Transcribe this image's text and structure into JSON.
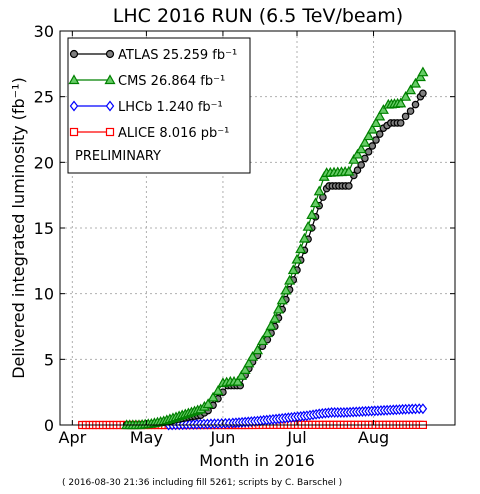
{
  "chart_data": {
    "type": "line",
    "title": "LHC 2016 RUN (6.5 TeV/beam)",
    "xlabel": "Month in 2016",
    "ylabel": "Delivered integrated luminosity (fb⁻¹)",
    "footnote": "( 2016-08-30 21:36 including fill 5261; scripts by C. Barschel )",
    "annotation": "PRELIMINARY",
    "xlim": [
      "2016-03-27",
      "2016-09-03"
    ],
    "ylim": [
      0,
      30
    ],
    "x_ticks": [
      {
        "label": "Apr",
        "date": "2016-04-01"
      },
      {
        "label": "May",
        "date": "2016-05-01"
      },
      {
        "label": "Jun",
        "date": "2016-06-01"
      },
      {
        "label": "Jul",
        "date": "2016-07-01"
      },
      {
        "label": "Aug",
        "date": "2016-08-01"
      }
    ],
    "y_ticks": [
      0,
      5,
      10,
      15,
      20,
      25,
      30
    ],
    "grid": true,
    "legend_position": "top-left",
    "series": [
      {
        "name": "ATLAS",
        "legend_label": "ATLAS 25.259 fb⁻¹",
        "color": "#000000",
        "marker_fill": "#808080",
        "marker": "circle",
        "points": [
          [
            "2016-04-23",
            0
          ],
          [
            "2016-04-28",
            0
          ],
          [
            "2016-05-03",
            0.05
          ],
          [
            "2016-05-08",
            0.2
          ],
          [
            "2016-05-13",
            0.4
          ],
          [
            "2016-05-18",
            0.6
          ],
          [
            "2016-05-23",
            0.75
          ],
          [
            "2016-05-26",
            1.1
          ],
          [
            "2016-05-28",
            1.5
          ],
          [
            "2016-05-30",
            2.0
          ],
          [
            "2016-06-01",
            2.5
          ],
          [
            "2016-06-03",
            3.0
          ],
          [
            "2016-06-08",
            3.0
          ],
          [
            "2016-06-10",
            3.8
          ],
          [
            "2016-06-13",
            4.8
          ],
          [
            "2016-06-15",
            5.3
          ],
          [
            "2016-06-17",
            6.0
          ],
          [
            "2016-06-19",
            6.5
          ],
          [
            "2016-06-22",
            7.5
          ],
          [
            "2016-06-25",
            8.8
          ],
          [
            "2016-06-28",
            10.3
          ],
          [
            "2016-07-01",
            11.8
          ],
          [
            "2016-07-04",
            13.3
          ],
          [
            "2016-07-07",
            15.0
          ],
          [
            "2016-07-10",
            16.7
          ],
          [
            "2016-07-13",
            18.0
          ],
          [
            "2016-07-14",
            18.2
          ],
          [
            "2016-07-22",
            18.2
          ],
          [
            "2016-07-24",
            19.0
          ],
          [
            "2016-07-27",
            19.8
          ],
          [
            "2016-07-30",
            20.8
          ],
          [
            "2016-08-02",
            21.7
          ],
          [
            "2016-08-05",
            22.6
          ],
          [
            "2016-08-08",
            23.0
          ],
          [
            "2016-08-12",
            23.0
          ],
          [
            "2016-08-14",
            23.5
          ],
          [
            "2016-08-16",
            23.9
          ],
          [
            "2016-08-18",
            24.4
          ],
          [
            "2016-08-20",
            25.0
          ],
          [
            "2016-08-21",
            25.259
          ]
        ]
      },
      {
        "name": "CMS",
        "legend_label": "CMS 26.864 fb⁻¹",
        "color": "#008000",
        "marker_fill": "#66cc66",
        "marker": "triangle",
        "points": [
          [
            "2016-04-23",
            0
          ],
          [
            "2016-04-28",
            0
          ],
          [
            "2016-05-03",
            0.1
          ],
          [
            "2016-05-08",
            0.3
          ],
          [
            "2016-05-13",
            0.6
          ],
          [
            "2016-05-18",
            0.9
          ],
          [
            "2016-05-23",
            1.2
          ],
          [
            "2016-05-26",
            1.6
          ],
          [
            "2016-05-28",
            2.1
          ],
          [
            "2016-05-30",
            2.6
          ],
          [
            "2016-06-01",
            3.2
          ],
          [
            "2016-06-04",
            3.3
          ],
          [
            "2016-06-07",
            3.3
          ],
          [
            "2016-06-10",
            4.2
          ],
          [
            "2016-06-13",
            5.2
          ],
          [
            "2016-06-15",
            5.7
          ],
          [
            "2016-06-17",
            6.4
          ],
          [
            "2016-06-19",
            7.0
          ],
          [
            "2016-06-22",
            8.1
          ],
          [
            "2016-06-25",
            9.5
          ],
          [
            "2016-06-28",
            11.0
          ],
          [
            "2016-07-01",
            12.6
          ],
          [
            "2016-07-04",
            14.2
          ],
          [
            "2016-07-07",
            16.0
          ],
          [
            "2016-07-10",
            17.8
          ],
          [
            "2016-07-12",
            18.9
          ],
          [
            "2016-07-13",
            19.2
          ],
          [
            "2016-07-22",
            19.3
          ],
          [
            "2016-07-24",
            20.2
          ],
          [
            "2016-07-27",
            21.0
          ],
          [
            "2016-07-30",
            22.0
          ],
          [
            "2016-08-02",
            23.0
          ],
          [
            "2016-08-05",
            24.0
          ],
          [
            "2016-08-07",
            24.4
          ],
          [
            "2016-08-12",
            24.5
          ],
          [
            "2016-08-14",
            25.0
          ],
          [
            "2016-08-16",
            25.5
          ],
          [
            "2016-08-18",
            26.0
          ],
          [
            "2016-08-20",
            26.5
          ],
          [
            "2016-08-21",
            26.864
          ]
        ]
      },
      {
        "name": "LHCb",
        "legend_label": "LHCb 1.240 fb⁻¹",
        "color": "#0000ff",
        "marker_fill": "#ffffff",
        "marker": "diamond",
        "points": [
          [
            "2016-05-10",
            0
          ],
          [
            "2016-05-20",
            0.05
          ],
          [
            "2016-05-30",
            0.1
          ],
          [
            "2016-06-05",
            0.15
          ],
          [
            "2016-06-10",
            0.22
          ],
          [
            "2016-06-15",
            0.3
          ],
          [
            "2016-06-20",
            0.4
          ],
          [
            "2016-06-25",
            0.5
          ],
          [
            "2016-06-30",
            0.6
          ],
          [
            "2016-07-05",
            0.7
          ],
          [
            "2016-07-10",
            0.85
          ],
          [
            "2016-07-15",
            0.95
          ],
          [
            "2016-07-20",
            0.95
          ],
          [
            "2016-07-25",
            1.0
          ],
          [
            "2016-07-30",
            1.05
          ],
          [
            "2016-08-04",
            1.1
          ],
          [
            "2016-08-09",
            1.15
          ],
          [
            "2016-08-14",
            1.2
          ],
          [
            "2016-08-18",
            1.23
          ],
          [
            "2016-08-21",
            1.24
          ]
        ]
      },
      {
        "name": "ALICE",
        "legend_label": "ALICE 8.016 pb⁻¹",
        "color": "#ff0000",
        "marker_fill": "#ffffff",
        "marker": "square",
        "points": [
          [
            "2016-04-05",
            0
          ],
          [
            "2016-04-08",
            0
          ],
          [
            "2016-04-12",
            0
          ],
          [
            "2016-05-10",
            0
          ],
          [
            "2016-05-20",
            0
          ],
          [
            "2016-05-30",
            0
          ],
          [
            "2016-06-10",
            0
          ],
          [
            "2016-06-20",
            0.01
          ],
          [
            "2016-06-30",
            0.01
          ],
          [
            "2016-07-10",
            0.01
          ],
          [
            "2016-07-20",
            0.01
          ],
          [
            "2016-07-30",
            0.01
          ],
          [
            "2016-08-09",
            0.01
          ],
          [
            "2016-08-21",
            0.008
          ]
        ]
      }
    ]
  }
}
